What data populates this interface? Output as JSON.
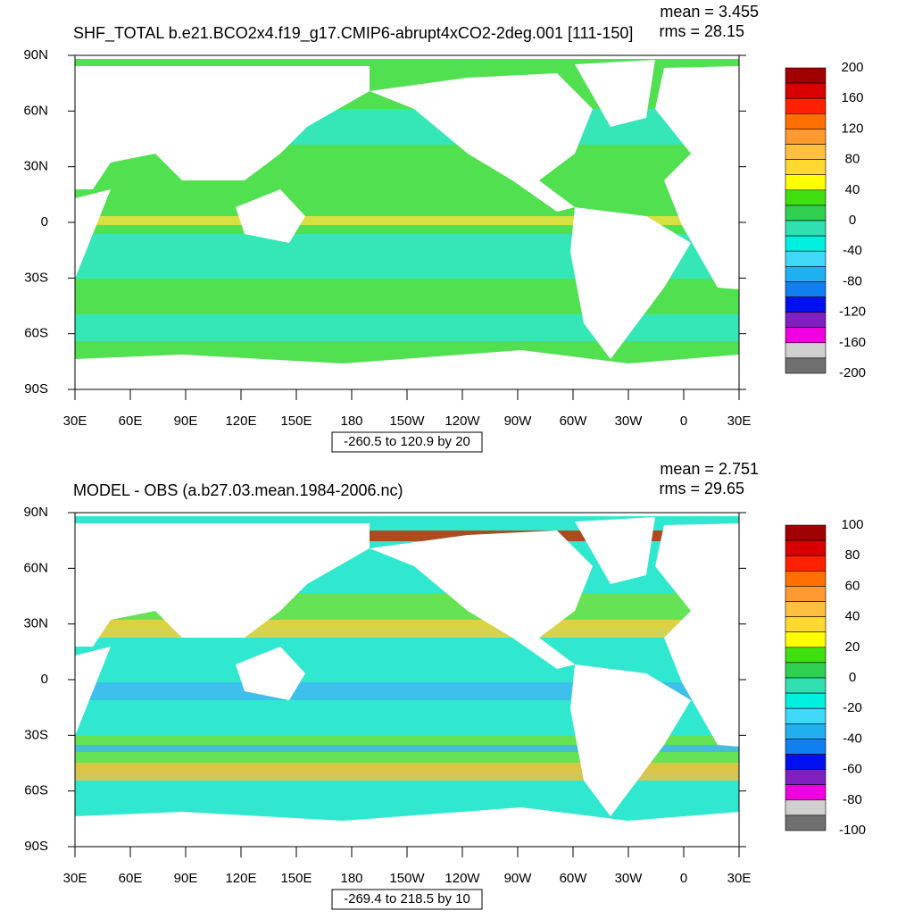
{
  "panels": [
    {
      "title": "SHF_TOTAL b.e21.BCO2x4.f19_g17.CMIP6-abrupt4xCO2-2deg.001 [111-150]",
      "mean": "mean = 3.455",
      "rms": "rms = 28.15",
      "range": "-260.5 to 120.9 by 20",
      "colorbar_labels": [
        200,
        160,
        120,
        80,
        40,
        0,
        -40,
        -80,
        -120,
        -160,
        -200
      ]
    },
    {
      "title": "MODEL - OBS (a.b27.03.mean.1984-2006.nc)",
      "mean": "mean = 2.751",
      "rms": "rms = 29.65",
      "range": "-269.4 to 218.5 by 10",
      "colorbar_labels": [
        100,
        80,
        60,
        40,
        20,
        0,
        -20,
        -40,
        -60,
        -80,
        -100
      ]
    }
  ],
  "lat_labels": [
    "90N",
    "60N",
    "30N",
    "0",
    "30S",
    "60S",
    "90S"
  ],
  "lon_labels": [
    "30E",
    "60E",
    "90E",
    "120E",
    "150E",
    "180",
    "150W",
    "120W",
    "90W",
    "60W",
    "30W",
    "0",
    "30E"
  ],
  "colorbar_colors": [
    "#a00000",
    "#d80000",
    "#ff2000",
    "#ff7000",
    "#ff9a30",
    "#ffc040",
    "#ffd830",
    "#ffff00",
    "#40e010",
    "#30d050",
    "#30e0b0",
    "#00f0e0",
    "#40d8f8",
    "#20b0f0",
    "#1080f0",
    "#0010f0",
    "#8020c0",
    "#f000e0",
    "#d0d0d0",
    "#707070"
  ]
}
